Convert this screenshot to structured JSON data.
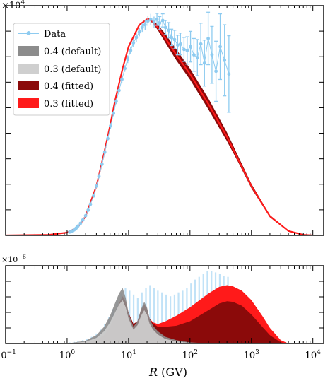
{
  "chart_data": [
    {
      "type": "line",
      "panel": "top",
      "xscale": "log",
      "xlim": [
        0.1,
        15000
      ],
      "ylim": [
        0,
        4.2
      ],
      "yscale_exponent_label": "×10",
      "yscale_exponent_power": "4",
      "grid": false,
      "legend_position": "top-left",
      "legend": [
        {
          "label": "Data",
          "kind": "errorbar",
          "color": "#8ecbf0"
        },
        {
          "label": "0.4 (default)",
          "kind": "band",
          "color": "#8c8c8c"
        },
        {
          "label": "0.3 (default)",
          "kind": "band",
          "color": "#cfcfcf"
        },
        {
          "label": "0.4 (fitted)",
          "kind": "band",
          "color": "#8b0a0a"
        },
        {
          "label": "0.3 (fitted)",
          "kind": "band",
          "color": "#ff1a1a"
        }
      ],
      "series": [
        {
          "name": "0.4 (fitted)",
          "color": "#8b0a0a",
          "x": [
            0.1,
            0.5,
            1.0,
            1.5,
            2.0,
            3.0,
            4.0,
            5.0,
            6.0,
            8.0,
            10,
            15,
            20,
            22,
            25,
            30,
            40,
            60,
            100,
            200,
            400,
            600,
            1000,
            2000,
            4000,
            7000,
            10000
          ],
          "y": [
            0.0,
            0.01,
            0.05,
            0.15,
            0.35,
            0.9,
            1.5,
            2.0,
            2.45,
            3.05,
            3.45,
            3.85,
            3.95,
            3.95,
            3.9,
            3.8,
            3.6,
            3.3,
            2.95,
            2.4,
            1.8,
            1.4,
            0.9,
            0.35,
            0.08,
            0.01,
            0.0
          ],
          "band_lower": [
            0.0,
            0.01,
            0.05,
            0.15,
            0.35,
            0.9,
            1.5,
            2.0,
            2.45,
            3.05,
            3.45,
            3.85,
            3.95,
            3.93,
            3.87,
            3.75,
            3.52,
            3.2,
            2.85,
            2.3,
            1.72,
            1.35,
            0.86,
            0.33,
            0.07,
            0.01,
            0.0
          ],
          "band_upper": [
            0.0,
            0.01,
            0.05,
            0.15,
            0.35,
            0.9,
            1.5,
            2.0,
            2.45,
            3.05,
            3.45,
            3.85,
            3.95,
            3.97,
            3.93,
            3.85,
            3.68,
            3.4,
            3.05,
            2.5,
            1.88,
            1.46,
            0.94,
            0.37,
            0.09,
            0.01,
            0.0
          ]
        },
        {
          "name": "0.3 (fitted)",
          "color": "#ff1a1a",
          "x": [
            0.1,
            0.5,
            1.0,
            1.5,
            2.0,
            3.0,
            4.0,
            5.0,
            6.0,
            8.0,
            10,
            15,
            20,
            22,
            25,
            30,
            40,
            60,
            100,
            200,
            400,
            600,
            1000,
            2000,
            4000,
            7000,
            10000
          ],
          "y": [
            0.0,
            0.01,
            0.05,
            0.15,
            0.35,
            0.9,
            1.5,
            2.0,
            2.45,
            3.05,
            3.45,
            3.85,
            3.95,
            3.95,
            3.9,
            3.8,
            3.6,
            3.3,
            2.95,
            2.4,
            1.8,
            1.4,
            0.9,
            0.35,
            0.08,
            0.01,
            0.0
          ]
        },
        {
          "name": "Data",
          "color": "#8ecbf0",
          "x": [
            1.1,
            1.2,
            1.3,
            1.4,
            1.5,
            1.65,
            1.8,
            2.0,
            2.2,
            2.4,
            2.7,
            3.0,
            3.3,
            3.7,
            4.1,
            4.6,
            5.1,
            5.7,
            6.3,
            7.0,
            7.8,
            8.7,
            9.7,
            10.8,
            12,
            13.4,
            15,
            16.7,
            18.6,
            20.7,
            23,
            26,
            29,
            32,
            36,
            40,
            45,
            50,
            56,
            63,
            70,
            80,
            90,
            102,
            116,
            132,
            150,
            172,
            198,
            228,
            265,
            310,
            365,
            430
          ],
          "y": [
            0.06,
            0.08,
            0.1,
            0.13,
            0.17,
            0.22,
            0.28,
            0.36,
            0.46,
            0.57,
            0.72,
            0.9,
            1.08,
            1.3,
            1.52,
            1.77,
            2.0,
            2.23,
            2.45,
            2.65,
            2.85,
            3.05,
            3.22,
            3.38,
            3.52,
            3.62,
            3.72,
            3.8,
            3.85,
            3.92,
            3.95,
            3.9,
            3.95,
            3.88,
            3.93,
            3.8,
            3.75,
            3.62,
            3.58,
            3.48,
            3.5,
            3.4,
            3.38,
            3.45,
            3.3,
            3.25,
            3.5,
            3.15,
            3.6,
            3.3,
            3.0,
            3.45,
            3.2,
            2.95
          ],
          "yerr": [
            0.01,
            0.01,
            0.01,
            0.01,
            0.01,
            0.02,
            0.02,
            0.02,
            0.02,
            0.03,
            0.03,
            0.03,
            0.04,
            0.04,
            0.04,
            0.05,
            0.05,
            0.05,
            0.05,
            0.06,
            0.06,
            0.06,
            0.07,
            0.07,
            0.07,
            0.08,
            0.08,
            0.08,
            0.09,
            0.09,
            0.1,
            0.1,
            0.11,
            0.12,
            0.12,
            0.13,
            0.14,
            0.15,
            0.17,
            0.18,
            0.2,
            0.22,
            0.25,
            0.28,
            0.3,
            0.33,
            0.38,
            0.42,
            0.48,
            0.52,
            0.55,
            0.6,
            0.65,
            0.7
          ]
        }
      ]
    },
    {
      "type": "area",
      "panel": "bottom",
      "xscale": "log",
      "xlim": [
        0.1,
        15000
      ],
      "ylim": [
        0,
        1.4
      ],
      "yscale_exponent_label": "×10",
      "yscale_exponent_power": "−6",
      "xlabel_symbol": "R",
      "xlabel_unit": " (GV)",
      "xtick_base": "10",
      "xticks": [
        {
          "value": 0.1,
          "exp": "−1"
        },
        {
          "value": 1,
          "exp": "0"
        },
        {
          "value": 10,
          "exp": "1"
        },
        {
          "value": 100,
          "exp": "2"
        },
        {
          "value": 1000,
          "exp": "3"
        },
        {
          "value": 10000,
          "exp": "4"
        }
      ],
      "series": [
        {
          "name": "0.3 (fitted)",
          "color": "#ff1a1a",
          "x": [
            1,
            2,
            3,
            4,
            5,
            6,
            7,
            8,
            9,
            10,
            12,
            14,
            16,
            18,
            20,
            22,
            25,
            30,
            40,
            60,
            100,
            200,
            300,
            400,
            500,
            700,
            1000,
            1500,
            2000,
            3000,
            4000
          ],
          "y": [
            0.0,
            0.02,
            0.06,
            0.15,
            0.3,
            0.5,
            0.72,
            0.85,
            0.75,
            0.55,
            0.35,
            0.4,
            0.6,
            0.7,
            0.62,
            0.45,
            0.38,
            0.35,
            0.4,
            0.5,
            0.65,
            0.9,
            1.02,
            1.05,
            1.03,
            0.95,
            0.78,
            0.5,
            0.28,
            0.06,
            0.0
          ]
        },
        {
          "name": "0.4 (fitted)",
          "color": "#8b0a0a",
          "x": [
            1,
            2,
            3,
            4,
            5,
            6,
            7,
            8,
            9,
            10,
            12,
            14,
            16,
            18,
            20,
            22,
            25,
            30,
            40,
            60,
            100,
            200,
            300,
            400,
            500,
            700,
            1000,
            1500,
            2000,
            3000,
            4000
          ],
          "y": [
            0.0,
            0.02,
            0.06,
            0.15,
            0.3,
            0.5,
            0.72,
            0.85,
            0.75,
            0.55,
            0.35,
            0.4,
            0.6,
            0.7,
            0.62,
            0.45,
            0.36,
            0.3,
            0.3,
            0.32,
            0.4,
            0.6,
            0.72,
            0.76,
            0.75,
            0.68,
            0.52,
            0.3,
            0.15,
            0.02,
            0.0
          ]
        },
        {
          "name": "0.4 (default)",
          "color": "#8c8c8c",
          "x": [
            1,
            2,
            3,
            4,
            5,
            6,
            7,
            8,
            9,
            10,
            12,
            14,
            16,
            18,
            20,
            22,
            25,
            30,
            40,
            60,
            100,
            150,
            200
          ],
          "y": [
            0.0,
            0.05,
            0.15,
            0.3,
            0.5,
            0.72,
            0.9,
            1.0,
            0.82,
            0.55,
            0.3,
            0.4,
            0.62,
            0.75,
            0.65,
            0.45,
            0.32,
            0.22,
            0.12,
            0.06,
            0.02,
            0.01,
            0.0
          ]
        },
        {
          "name": "0.3 (default)",
          "color": "#cfcfcf",
          "x": [
            1,
            2,
            3,
            4,
            5,
            6,
            7,
            8,
            9,
            10,
            12,
            14,
            16,
            18,
            20,
            22,
            25,
            30,
            40,
            60,
            100,
            150,
            200
          ],
          "y": [
            0.0,
            0.03,
            0.1,
            0.22,
            0.38,
            0.55,
            0.7,
            0.78,
            0.65,
            0.45,
            0.25,
            0.33,
            0.5,
            0.6,
            0.52,
            0.36,
            0.25,
            0.16,
            0.08,
            0.04,
            0.01,
            0.0,
            0.0
          ]
        },
        {
          "name": "Data",
          "color": "#8ecbf0",
          "x": [
            1.1,
            1.3,
            1.5,
            1.8,
            2.1,
            2.5,
            3.0,
            3.5,
            4.1,
            4.8,
            5.6,
            6.5,
            7.6,
            8.9,
            10.4,
            12.1,
            14.1,
            16.5,
            19.2,
            22.4,
            26,
            30,
            35,
            41,
            48,
            56,
            65,
            76,
            89,
            104,
            121,
            141,
            165,
            192,
            224,
            261,
            305,
            355,
            415
          ],
          "y": [
            0.02,
            0.03,
            0.04,
            0.06,
            0.08,
            0.12,
            0.18,
            0.25,
            0.35,
            0.48,
            0.62,
            0.78,
            0.9,
            1.0,
            0.95,
            0.88,
            0.82,
            0.92,
            1.0,
            1.05,
            1.0,
            0.95,
            0.92,
            0.88,
            0.85,
            0.88,
            0.92,
            0.95,
            1.0,
            1.08,
            1.15,
            1.2,
            1.25,
            1.3,
            1.3,
            1.28,
            1.25,
            1.22,
            1.2
          ]
        }
      ]
    }
  ]
}
